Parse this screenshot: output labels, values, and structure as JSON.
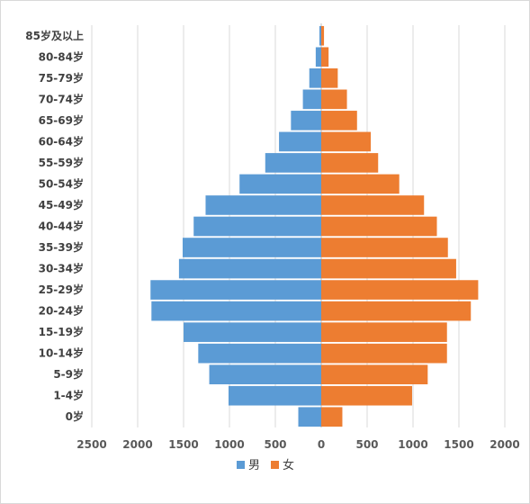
{
  "chart_data": {
    "type": "bar",
    "orientation": "horizontal",
    "layout": "population-pyramid",
    "categories": [
      "0岁",
      "1-4岁",
      "5-9岁",
      "10-14岁",
      "15-19岁",
      "20-24岁",
      "25-29岁",
      "30-34岁",
      "35-39岁",
      "40-44岁",
      "45-49岁",
      "50-54岁",
      "55-59岁",
      "60-64岁",
      "65-69岁",
      "70-74岁",
      "75-79岁",
      "80-84岁",
      "85岁及以上"
    ],
    "series": [
      {
        "name": "男",
        "color": "#5b9bd5",
        "values": [
          250,
          1010,
          1220,
          1340,
          1500,
          1850,
          1860,
          1550,
          1510,
          1390,
          1260,
          890,
          610,
          460,
          330,
          200,
          130,
          60,
          20
        ]
      },
      {
        "name": "女",
        "color": "#ed7d31",
        "values": [
          230,
          990,
          1160,
          1370,
          1370,
          1630,
          1710,
          1470,
          1380,
          1260,
          1120,
          850,
          620,
          540,
          390,
          280,
          180,
          80,
          30
        ]
      }
    ],
    "x_ticks": [
      "2500",
      "2000",
      "1500",
      "1000",
      "500",
      "0",
      "500",
      "1000",
      "1500",
      "2000"
    ],
    "xlim": [
      -2500,
      2000
    ],
    "grid": "vertical",
    "legend": "bottom"
  }
}
